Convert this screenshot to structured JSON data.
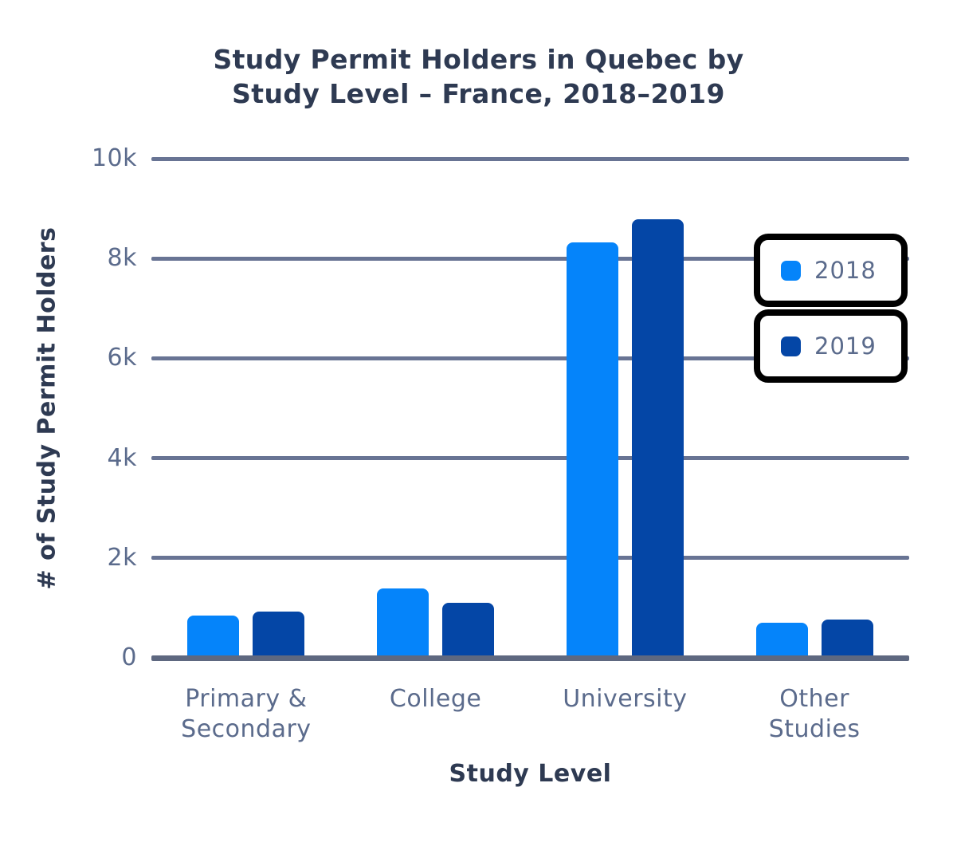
{
  "header": {
    "title_line1": "Study Permit Holders in Quebec by",
    "title_line2": "Study Level – France, 2018–2019"
  },
  "axes": {
    "x_title": "Study Level",
    "y_title": "# of Study Permit Holders"
  },
  "legend": {
    "items": [
      {
        "label": "2018",
        "color": "#0584fa"
      },
      {
        "label": "2019",
        "color": "#0446a6"
      }
    ]
  },
  "colors": {
    "series_2018": "#0584fa",
    "series_2019": "#0446a6",
    "gridline": "#687494",
    "axis_line": "#5e6880",
    "tick_text": "#5b6b8c",
    "title_text": "#2e3a52",
    "legend_border": "#000000",
    "background": "#ffffff"
  },
  "chart_data": {
    "type": "bar",
    "title": "Study Permit Holders in Quebec by Study Level – France, 2018–2019",
    "xlabel": "Study Level",
    "ylabel": "# of Study Permit Holders",
    "categories": [
      "Primary & Secondary",
      "College",
      "University",
      "Other Studies"
    ],
    "category_display_lines": [
      [
        "Primary &",
        "Secondary"
      ],
      [
        "College"
      ],
      [
        "University"
      ],
      [
        "Other",
        "Studies"
      ]
    ],
    "series": [
      {
        "name": "2018",
        "color": "#0584fa",
        "values": [
          850,
          1390,
          8330,
          700
        ]
      },
      {
        "name": "2019",
        "color": "#0446a6",
        "values": [
          930,
          1110,
          8790,
          760
        ]
      }
    ],
    "ylim": [
      0,
      10000
    ],
    "yticks": [
      {
        "value": 0,
        "label": "0"
      },
      {
        "value": 2000,
        "label": "2k"
      },
      {
        "value": 4000,
        "label": "4k"
      },
      {
        "value": 6000,
        "label": "6k"
      },
      {
        "value": 8000,
        "label": "8k"
      },
      {
        "value": 10000,
        "label": "10k"
      }
    ],
    "grid": true,
    "legend_position": "inside-right"
  }
}
